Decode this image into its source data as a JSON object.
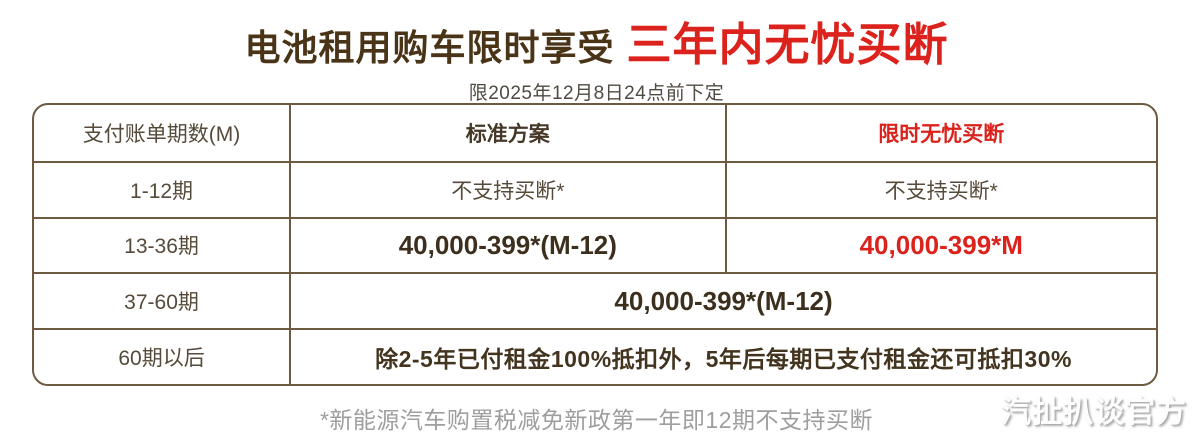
{
  "header": {
    "title_normal": "电池租用购车限时享受",
    "title_highlight": "三年内无忧买断",
    "subtitle": "限2025年12月8日24点前下定"
  },
  "colors": {
    "accent_red": "#db221c",
    "title_brown": "#4a3418",
    "table_border": "#6d5a40"
  },
  "table": {
    "columns": [
      "支付账单期数(M)",
      "标准方案",
      "限时无忧买断"
    ],
    "rows": [
      {
        "period": "1-12期",
        "standard": "不支持买断*",
        "limited": "不支持买断*"
      },
      {
        "period": "13-36期",
        "standard": "40,000-399*(M-12)",
        "limited": "40,000-399*M"
      },
      {
        "period": "37-60期",
        "merged": "40,000-399*(M-12)"
      },
      {
        "period": "60期以后",
        "merged": "除2-5年已付租金100%抵扣外，5年后每期已支付租金还可抵扣30%"
      }
    ]
  },
  "footnote": "*新能源汽车购置税减免新政第一年即12期不支持买断",
  "watermark": "汽扯扒谈官方"
}
